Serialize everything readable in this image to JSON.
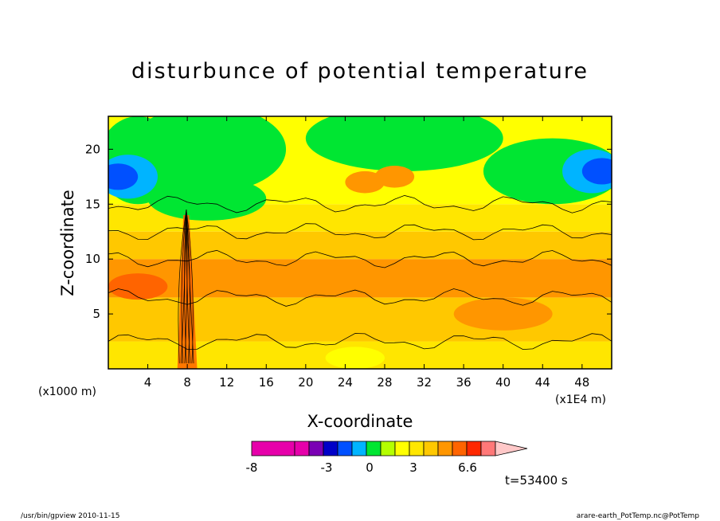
{
  "chart_data": {
    "type": "heatmap",
    "title": "disturbunce of potential temperature",
    "xlabel": "X-coordinate",
    "ylabel": "Z-coordinate",
    "x_unit_left": "(x1000 m)",
    "x_unit_right": "(x1E4 m)",
    "xlim": [
      0,
      51
    ],
    "ylim": [
      0,
      23
    ],
    "x_ticks": [
      "4",
      "8",
      "12",
      "16",
      "20",
      "24",
      "28",
      "32",
      "36",
      "40",
      "44",
      "48"
    ],
    "y_ticks": [
      "5",
      "10",
      "15",
      "20"
    ],
    "colorbar": {
      "colors": [
        "#e600aa",
        "#e600aa",
        "#7a00b4",
        "#0000c8",
        "#0050ff",
        "#00b4ff",
        "#00e632",
        "#b4ff00",
        "#ffff00",
        "#ffe600",
        "#ffc800",
        "#ff9600",
        "#ff6400",
        "#ff2800",
        "#ff7878",
        "#ffc8c8"
      ],
      "tick_labels": [
        "-8",
        "-3",
        "0",
        "3",
        "6.6"
      ]
    },
    "time_label": "t=53400 s"
  },
  "footer": {
    "left": "/usr/bin/gpview   2010-11-15",
    "right": "arare-earth_PotTemp.nc@PotTemp"
  }
}
